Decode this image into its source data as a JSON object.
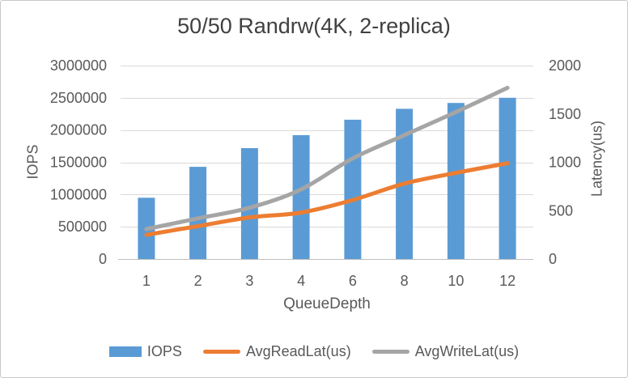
{
  "window": {
    "background": "#ffffff",
    "border_color": "#c8c8c8"
  },
  "chart_data": {
    "type": "combo-bar-line",
    "title": "50/50 Randrw(4K, 2-replica)",
    "categories": [
      "1",
      "2",
      "3",
      "4",
      "6",
      "8",
      "10",
      "12"
    ],
    "x_axis": {
      "label": "QueueDepth"
    },
    "y_left": {
      "label": "IOPS",
      "min": 0,
      "max": 3000000,
      "step": 500000,
      "tick_labels": [
        "0",
        "500000",
        "1000000",
        "1500000",
        "2000000",
        "2500000",
        "3000000"
      ]
    },
    "y_right": {
      "label": "Latency(us)",
      "min": 0,
      "max": 2000,
      "step": 500,
      "tick_labels": [
        "0",
        "500",
        "1000",
        "1500",
        "2000"
      ]
    },
    "series": [
      {
        "name": "IOPS",
        "type": "bar",
        "axis": "left",
        "color": "#5B9BD5",
        "values": [
          950000,
          1430000,
          1720000,
          1920000,
          2160000,
          2330000,
          2420000,
          2500000
        ]
      },
      {
        "name": "AvgReadLat(us)",
        "type": "line",
        "axis": "right",
        "color": "#ED7D31",
        "values": [
          250,
          340,
          430,
          480,
          610,
          780,
          890,
          990
        ]
      },
      {
        "name": "AvgWriteLat(us)",
        "type": "line",
        "axis": "right",
        "color": "#A5A5A5",
        "values": [
          310,
          420,
          530,
          720,
          1040,
          1280,
          1520,
          1770
        ]
      }
    ],
    "legend_position": "bottom",
    "grid": true,
    "gridline_color": "#D9D9D9",
    "axis_line_color": "#BFBFBF",
    "tick_text_color": "#595959",
    "title_color": "#404040"
  }
}
